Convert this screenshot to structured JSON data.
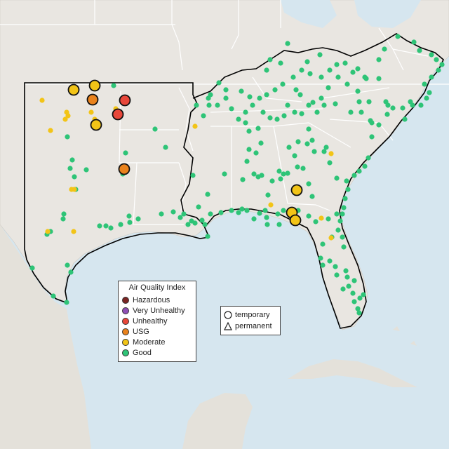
{
  "colors": {
    "ocean": "#d6e6ef",
    "land": "#e9e6e1",
    "mexico": "#e4e1da",
    "border": "#ffffff",
    "region_outline": "#000000",
    "good": "#2ec477",
    "moderate": "#f2c417",
    "usg": "#e9821c",
    "unhealthy": "#e8473a",
    "very_unhealthy": "#8e4fb5",
    "hazardous": "#7a2524"
  },
  "legend": {
    "title": "Air Quality Index",
    "items": [
      {
        "label": "Hazardous",
        "color": "#7a2524"
      },
      {
        "label": "Very Unhealthy",
        "color": "#8e4fb5"
      },
      {
        "label": "Unhealthy",
        "color": "#e8473a"
      },
      {
        "label": "USG",
        "color": "#e9821c"
      },
      {
        "label": "Moderate",
        "color": "#f2c417"
      },
      {
        "label": "Good",
        "color": "#2ec477"
      }
    ]
  },
  "shape_legend": {
    "temporary": "temporary",
    "permanent": "permanent"
  },
  "monitors": {
    "good_count": 220,
    "moderate_count": 14,
    "usg_count": 2,
    "unhealthy_count": 2
  }
}
